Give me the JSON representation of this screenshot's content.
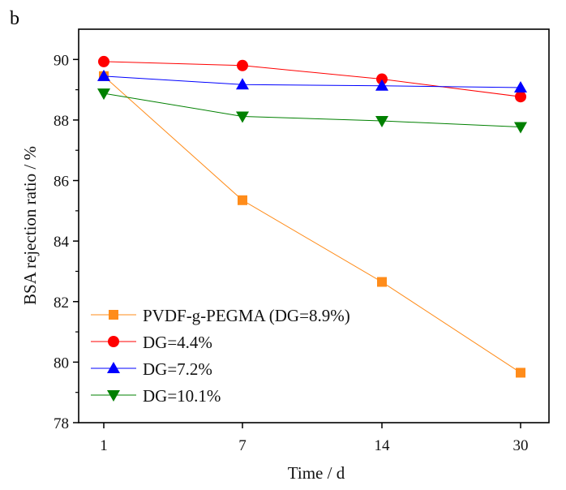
{
  "panel_label": "b",
  "chart_data": {
    "type": "line",
    "xlabel": "Time / d",
    "ylabel": "BSA rejection ratio / %",
    "categories": [
      "1",
      "7",
      "14",
      "30"
    ],
    "ylim": [
      78,
      91
    ],
    "yticks": [
      78,
      80,
      82,
      84,
      86,
      88,
      90
    ],
    "grid": false,
    "legend_position": "bottom-left",
    "series": [
      {
        "name": "PVDF-g-PEGMA (DG=8.9%)",
        "color": "#ff8c1a",
        "marker": "square",
        "values": [
          89.45,
          85.35,
          82.65,
          79.65
        ]
      },
      {
        "name": "DG=4.4%",
        "color": "#ff0000",
        "marker": "circle",
        "values": [
          89.93,
          89.8,
          89.35,
          88.77
        ]
      },
      {
        "name": "DG=7.2%",
        "color": "#0000ff",
        "marker": "triangle-up",
        "values": [
          89.45,
          89.17,
          89.13,
          89.07
        ]
      },
      {
        "name": "DG=10.1%",
        "color": "#008000",
        "marker": "triangle-down",
        "values": [
          88.88,
          88.12,
          87.97,
          87.77
        ]
      }
    ]
  }
}
